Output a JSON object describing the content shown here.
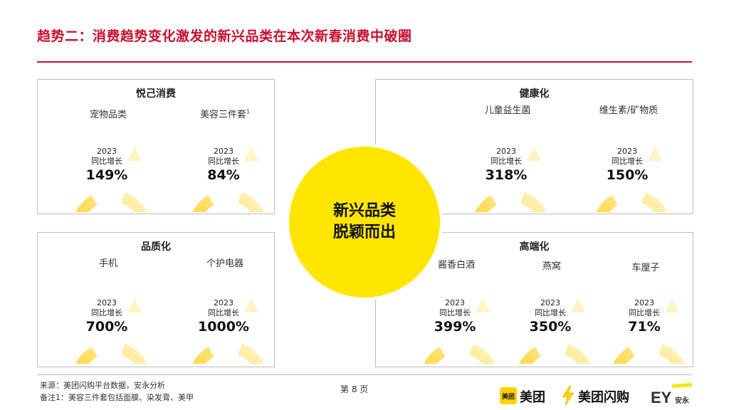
{
  "title": "趋势二：消费趋势变化激发的新兴品类在本次新春消费中破圈",
  "center": {
    "line1": "新兴品类",
    "line2": "脱颖而出"
  },
  "panels": [
    {
      "title": "悦己消费",
      "items": [
        {
          "label": "宠物品类",
          "sup": "",
          "year": "2023",
          "desc": "同比增长",
          "value": "149%"
        },
        {
          "label": "美容三件套",
          "sup": "1",
          "year": "2023",
          "desc": "同比增长",
          "value": "84%"
        }
      ]
    },
    {
      "title": "健康化",
      "items": [
        {
          "label": "儿童益生菌",
          "sup": "",
          "year": "2023",
          "desc": "同比增长",
          "value": "318%"
        },
        {
          "label": "维生素/矿物质",
          "sup": "",
          "year": "2023",
          "desc": "同比增长",
          "value": "150%"
        }
      ]
    },
    {
      "title": "品质化",
      "items": [
        {
          "label": "手机",
          "sup": "",
          "year": "2023",
          "desc": "同比增长",
          "value": "700%"
        },
        {
          "label": "个护电器",
          "sup": "",
          "year": "2023",
          "desc": "同比增长",
          "value": "1000%"
        }
      ]
    },
    {
      "title": "高端化",
      "items": [
        {
          "label": "酱香白酒",
          "sup": "",
          "year": "2023",
          "desc": "同比增长",
          "value": "399%"
        },
        {
          "label": "燕窝",
          "sup": "",
          "year": "2023",
          "desc": "同比增长",
          "value": "350%"
        },
        {
          "label": "车厘子",
          "sup": "",
          "year": "2023",
          "desc": "同比增长",
          "value": "71%"
        }
      ]
    }
  ],
  "footer": {
    "source": "来源：美团闪购平台数据，安永分析",
    "note": "备注1：美容三件套包括面膜、染发膏、美甲",
    "page": "第 8 页"
  },
  "logos": {
    "meituan_box": "美团",
    "meituan": "美团",
    "flash": "美团闪购",
    "ey": "EY",
    "ey_cn": "安永"
  },
  "colors": {
    "accent": "#c8102e",
    "ring": "#ffd84d",
    "center": "#ffe600"
  }
}
